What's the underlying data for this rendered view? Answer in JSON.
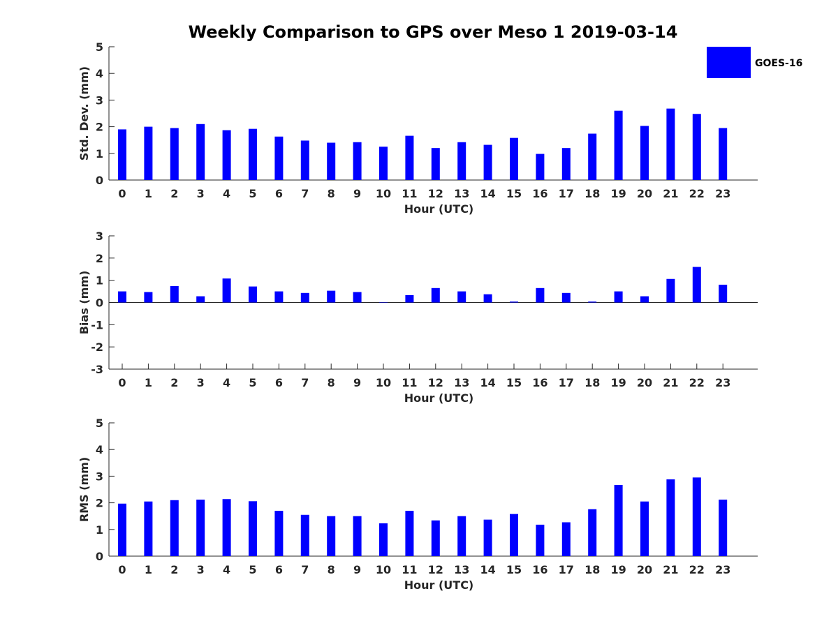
{
  "title": "Weekly Comparison to GPS over Meso 1 2019-03-14",
  "legend": {
    "label": "GOES-16",
    "color": "#0000ff"
  },
  "bar_color": "#0000ff",
  "chart_data": [
    {
      "type": "bar",
      "name": "std-dev",
      "xlabel": "Hour (UTC)",
      "ylabel": "Std. Dev. (mm)",
      "ylim": [
        0,
        5
      ],
      "yticks": [
        0,
        1,
        2,
        3,
        4,
        5
      ],
      "categories": [
        "0",
        "1",
        "2",
        "3",
        "4",
        "5",
        "6",
        "7",
        "8",
        "9",
        "10",
        "11",
        "12",
        "13",
        "14",
        "15",
        "16",
        "17",
        "18",
        "19",
        "20",
        "21",
        "22",
        "23"
      ],
      "series": [
        {
          "name": "GOES-16",
          "values": [
            1.9,
            2.0,
            1.95,
            2.1,
            1.87,
            1.92,
            1.63,
            1.48,
            1.4,
            1.42,
            1.25,
            1.66,
            1.2,
            1.42,
            1.32,
            1.58,
            0.98,
            1.2,
            1.74,
            2.6,
            2.03,
            2.68,
            2.48,
            1.95
          ]
        }
      ]
    },
    {
      "type": "bar",
      "name": "bias",
      "xlabel": "Hour (UTC)",
      "ylabel": "Bias (mm)",
      "ylim": [
        -3,
        3
      ],
      "yticks": [
        -3,
        -2,
        -1,
        0,
        1,
        2,
        3
      ],
      "categories": [
        "0",
        "1",
        "2",
        "3",
        "4",
        "5",
        "6",
        "7",
        "8",
        "9",
        "10",
        "11",
        "12",
        "13",
        "14",
        "15",
        "16",
        "17",
        "18",
        "19",
        "20",
        "21",
        "22",
        "23"
      ],
      "series": [
        {
          "name": "GOES-16",
          "values": [
            0.5,
            0.47,
            0.74,
            0.28,
            1.08,
            0.72,
            0.5,
            0.43,
            0.53,
            0.47,
            0.0,
            0.33,
            0.65,
            0.5,
            0.37,
            0.04,
            0.65,
            0.43,
            0.04,
            0.5,
            0.28,
            1.06,
            1.6,
            0.8
          ]
        }
      ]
    },
    {
      "type": "bar",
      "name": "rms",
      "xlabel": "Hour (UTC)",
      "ylabel": "RMS (mm)",
      "ylim": [
        0,
        5
      ],
      "yticks": [
        0,
        1,
        2,
        3,
        4,
        5
      ],
      "categories": [
        "0",
        "1",
        "2",
        "3",
        "4",
        "5",
        "6",
        "7",
        "8",
        "9",
        "10",
        "11",
        "12",
        "13",
        "14",
        "15",
        "16",
        "17",
        "18",
        "19",
        "20",
        "21",
        "22",
        "23"
      ],
      "series": [
        {
          "name": "GOES-16",
          "values": [
            1.97,
            2.05,
            2.1,
            2.12,
            2.14,
            2.06,
            1.7,
            1.55,
            1.5,
            1.5,
            1.23,
            1.7,
            1.34,
            1.5,
            1.37,
            1.58,
            1.18,
            1.27,
            1.76,
            2.67,
            2.05,
            2.88,
            2.95,
            2.12
          ]
        }
      ]
    }
  ]
}
